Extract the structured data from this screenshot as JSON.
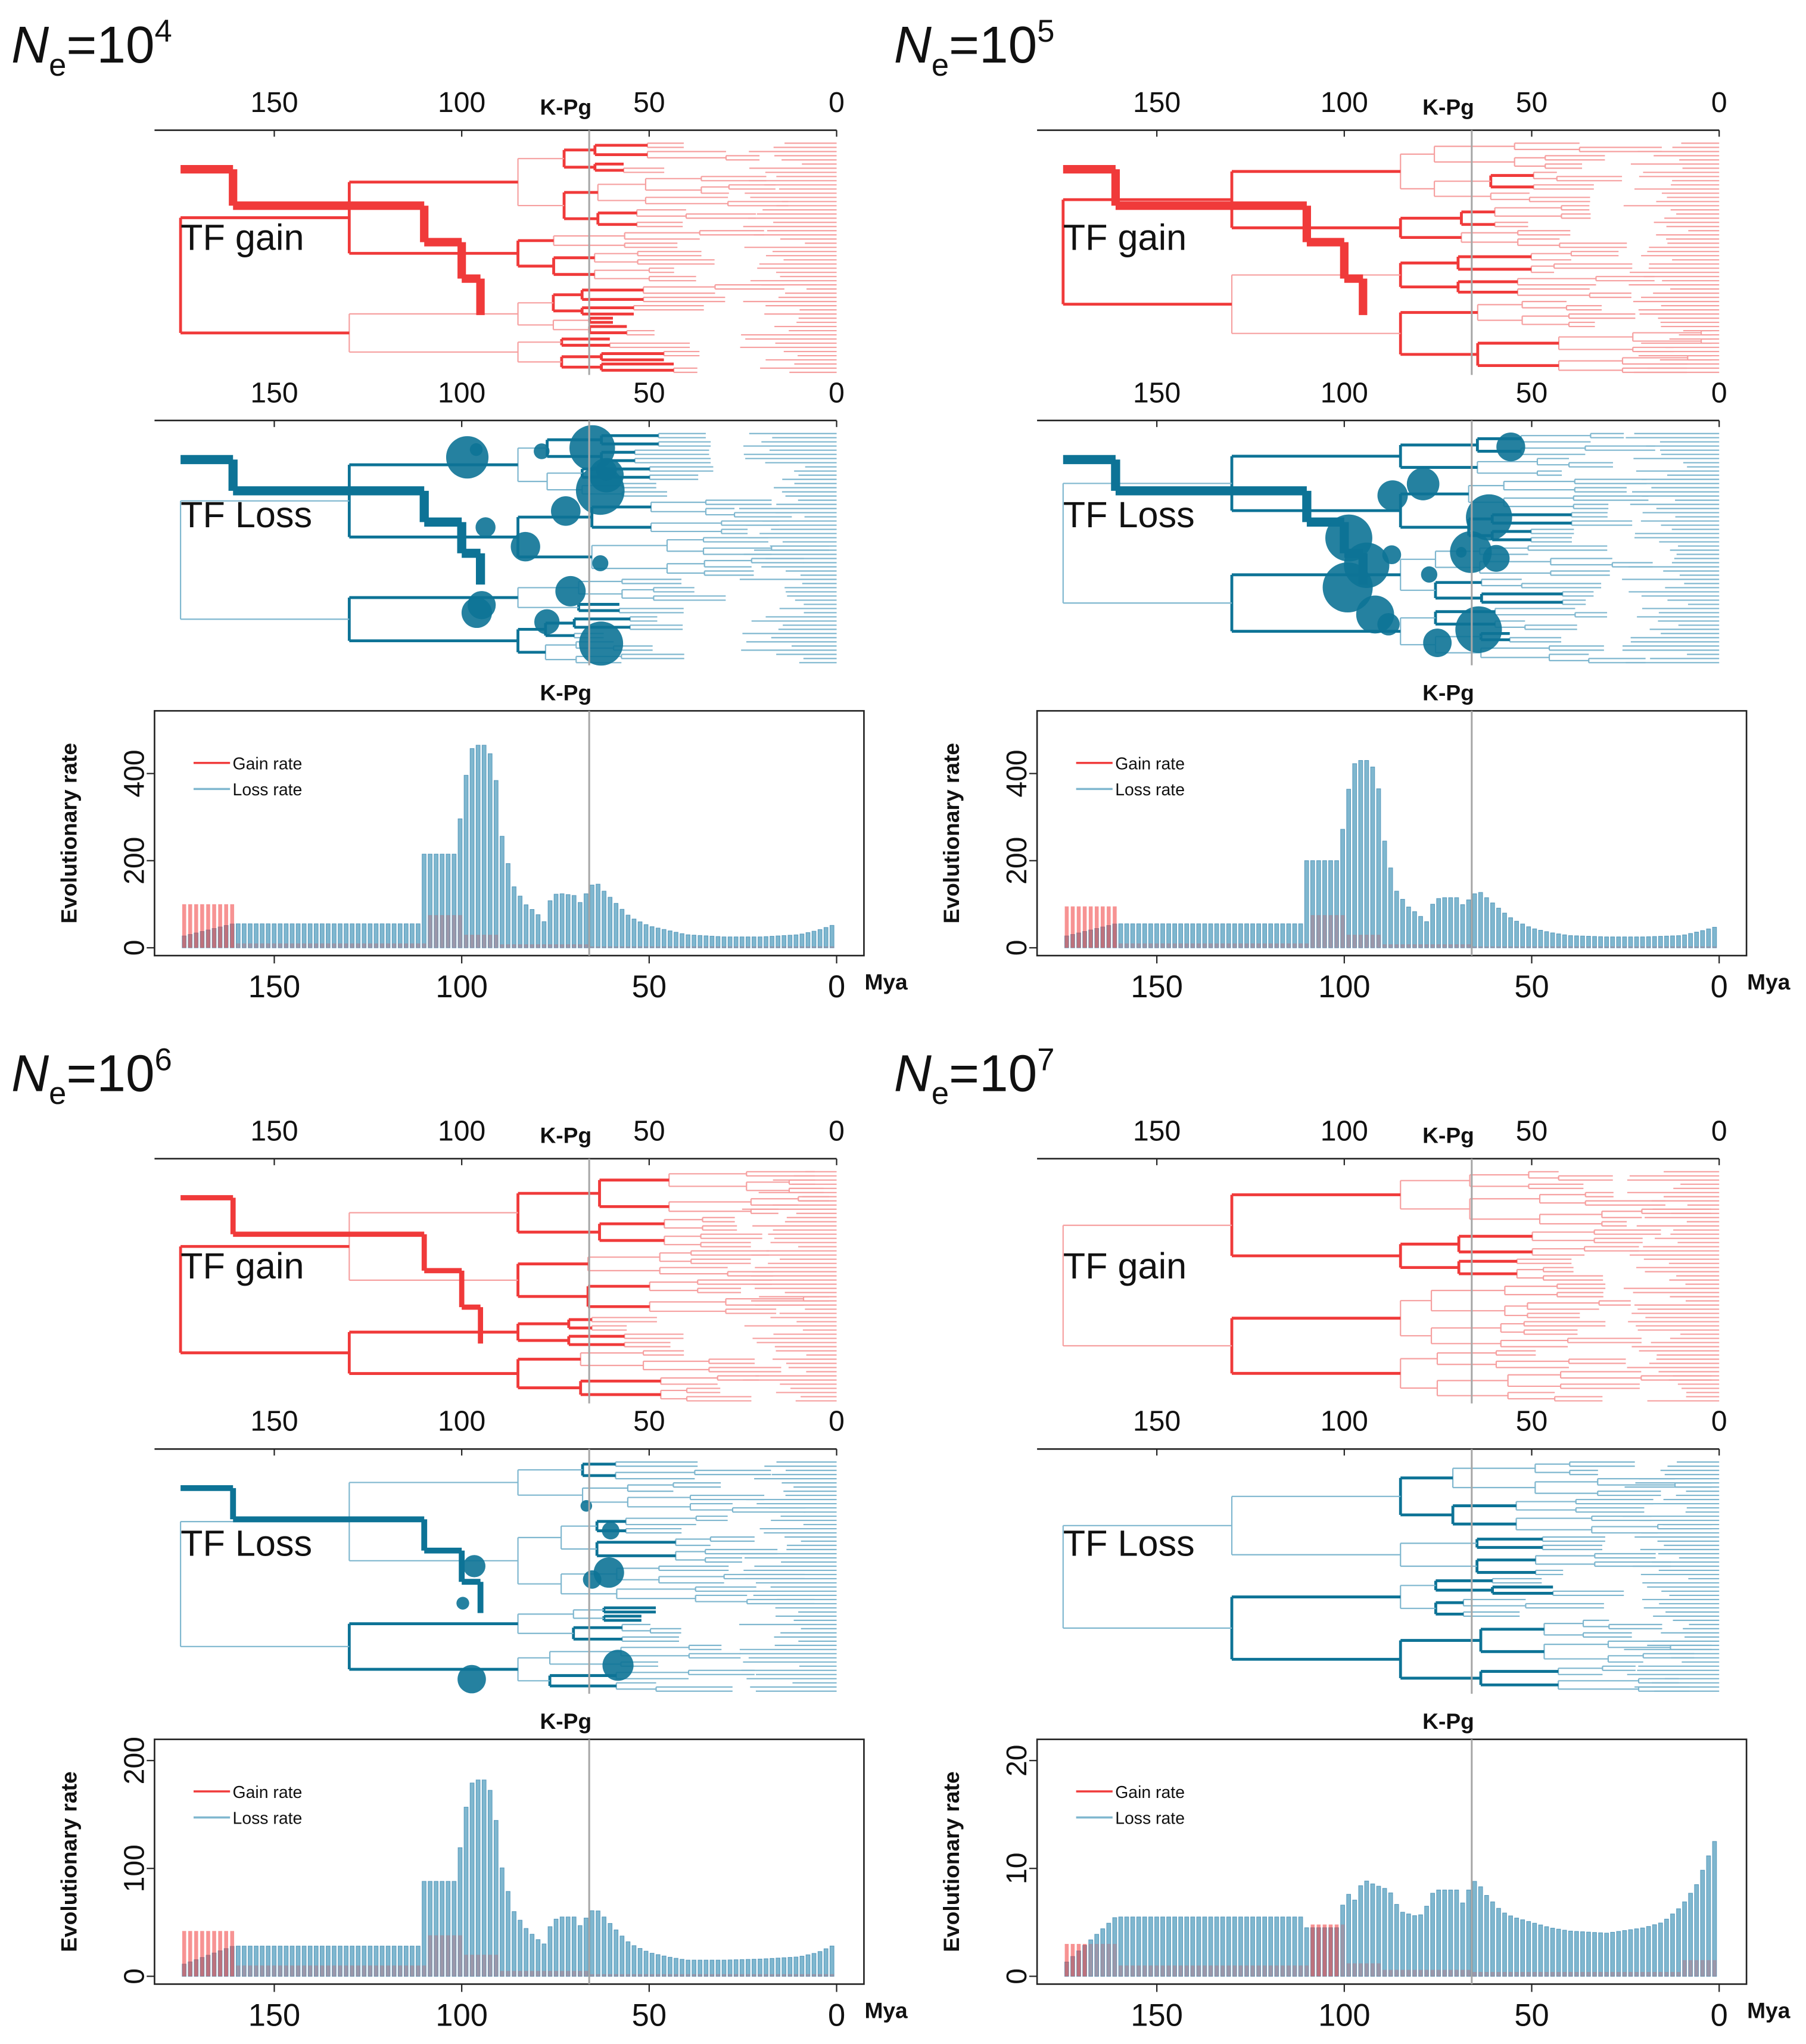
{
  "figure": {
    "colors": {
      "gain": "#f03a3a",
      "gain_light": "#f6a0a0",
      "loss": "#0d7396",
      "loss_light": "#7fb7cf",
      "vline": "#a7a7a7",
      "axis": "#222222"
    },
    "kpg_label": "K-Pg",
    "mya_label": "Mya",
    "ylabel": "Evolutionary rate",
    "legend": [
      "Gain rate",
      "Loss rate"
    ],
    "tree_labels": [
      "TF gain",
      "TF Loss"
    ],
    "tree_ticks": [
      "150",
      "100",
      "50",
      "0"
    ],
    "panels": [
      {
        "title_base": "N",
        "title_sub": "e",
        "title_rest": "=10",
        "title_exp": "4"
      },
      {
        "title_base": "N",
        "title_sub": "e",
        "title_rest": "=10",
        "title_exp": "5"
      },
      {
        "title_base": "N",
        "title_sub": "e",
        "title_rest": "=10",
        "title_exp": "6"
      },
      {
        "title_base": "N",
        "title_sub": "e",
        "title_rest": "=10",
        "title_exp": "7"
      }
    ]
  },
  "chart_data": [
    {
      "type": "bar",
      "title": "Ne=10^4",
      "xlabel": "Mya",
      "ylabel": "Evolutionary rate",
      "x_reversed": true,
      "xlim": [
        175,
        0
      ],
      "xticks": [
        150,
        100,
        50,
        0
      ],
      "ylim": [
        0,
        520
      ],
      "yticks": [
        0,
        200,
        400
      ],
      "kpg_mya": 66,
      "legend_position": "top-left",
      "series": [
        {
          "name": "Gain rate",
          "segments": [
            [
              175,
              161,
              100
            ],
            [
              161,
              110,
              10
            ],
            [
              110,
              100,
              75
            ],
            [
              100,
              90,
              30
            ],
            [
              90,
              66,
              8
            ],
            [
              66,
              0,
              3
            ]
          ]
        },
        {
          "name": "Loss rate",
          "points": [
            [
              175,
              25
            ],
            [
              161,
              55
            ],
            [
              111,
              55
            ],
            [
              110,
              215
            ],
            [
              101,
              215
            ],
            [
              100,
              350
            ],
            [
              97,
              465
            ],
            [
              93,
              465
            ],
            [
              91,
              400
            ],
            [
              89,
              240
            ],
            [
              86,
              140
            ],
            [
              83,
              100
            ],
            [
              80,
              80
            ],
            [
              78,
              60
            ],
            [
              76,
              120
            ],
            [
              74,
              125
            ],
            [
              70,
              120
            ],
            [
              68,
              100
            ],
            [
              66,
              140
            ],
            [
              64,
              150
            ],
            [
              62,
              130
            ],
            [
              58,
              95
            ],
            [
              55,
              70
            ],
            [
              50,
              50
            ],
            [
              45,
              40
            ],
            [
              40,
              30
            ],
            [
              30,
              25
            ],
            [
              20,
              25
            ],
            [
              10,
              30
            ],
            [
              5,
              40
            ],
            [
              0,
              55
            ]
          ]
        }
      ]
    },
    {
      "type": "bar",
      "title": "Ne=10^5",
      "xlabel": "Mya",
      "ylabel": "Evolutionary rate",
      "x_reversed": true,
      "xlim": [
        175,
        0
      ],
      "xticks": [
        150,
        100,
        50,
        0
      ],
      "ylim": [
        0,
        520
      ],
      "yticks": [
        0,
        200,
        400
      ],
      "kpg_mya": 66,
      "legend_position": "top-left",
      "series": [
        {
          "name": "Gain rate",
          "segments": [
            [
              175,
              161,
              95
            ],
            [
              161,
              110,
              10
            ],
            [
              110,
              100,
              75
            ],
            [
              100,
              90,
              30
            ],
            [
              90,
              66,
              8
            ],
            [
              66,
              0,
              3
            ]
          ]
        },
        {
          "name": "Loss rate",
          "points": [
            [
              175,
              25
            ],
            [
              161,
              55
            ],
            [
              111,
              55
            ],
            [
              110,
              200
            ],
            [
              101,
              200
            ],
            [
              100,
              320
            ],
            [
              97,
              430
            ],
            [
              93,
              430
            ],
            [
              91,
              380
            ],
            [
              89,
              230
            ],
            [
              86,
              130
            ],
            [
              83,
              95
            ],
            [
              80,
              75
            ],
            [
              78,
              60
            ],
            [
              76,
              110
            ],
            [
              74,
              115
            ],
            [
              70,
              115
            ],
            [
              68,
              95
            ],
            [
              66,
              120
            ],
            [
              64,
              130
            ],
            [
              62,
              115
            ],
            [
              58,
              85
            ],
            [
              55,
              65
            ],
            [
              50,
              45
            ],
            [
              45,
              35
            ],
            [
              40,
              28
            ],
            [
              30,
              25
            ],
            [
              20,
              25
            ],
            [
              10,
              28
            ],
            [
              5,
              38
            ],
            [
              0,
              50
            ]
          ]
        }
      ]
    },
    {
      "type": "bar",
      "title": "Ne=10^6",
      "xlabel": "Mya",
      "ylabel": "Evolutionary rate",
      "x_reversed": true,
      "xlim": [
        175,
        0
      ],
      "xticks": [
        150,
        100,
        50,
        0
      ],
      "ylim": [
        0,
        210
      ],
      "yticks": [
        0,
        100,
        200
      ],
      "kpg_mya": 66,
      "legend_position": "top-left",
      "series": [
        {
          "name": "Gain rate",
          "segments": [
            [
              175,
              161,
              42
            ],
            [
              161,
              110,
              10
            ],
            [
              110,
              100,
              38
            ],
            [
              100,
              90,
              20
            ],
            [
              90,
              66,
              5
            ],
            [
              66,
              0,
              2
            ]
          ]
        },
        {
          "name": "Loss rate",
          "points": [
            [
              175,
              10
            ],
            [
              161,
              28
            ],
            [
              111,
              28
            ],
            [
              110,
              88
            ],
            [
              101,
              88
            ],
            [
              100,
              140
            ],
            [
              97,
              182
            ],
            [
              93,
              182
            ],
            [
              91,
              150
            ],
            [
              89,
              95
            ],
            [
              86,
              60
            ],
            [
              83,
              45
            ],
            [
              80,
              35
            ],
            [
              78,
              30
            ],
            [
              76,
              50
            ],
            [
              74,
              55
            ],
            [
              70,
              55
            ],
            [
              68,
              45
            ],
            [
              66,
              60
            ],
            [
              64,
              62
            ],
            [
              62,
              55
            ],
            [
              58,
              40
            ],
            [
              55,
              30
            ],
            [
              50,
              22
            ],
            [
              45,
              18
            ],
            [
              40,
              15
            ],
            [
              30,
              15
            ],
            [
              20,
              16
            ],
            [
              10,
              18
            ],
            [
              5,
              22
            ],
            [
              0,
              30
            ]
          ]
        }
      ]
    },
    {
      "type": "bar",
      "title": "Ne=10^7",
      "xlabel": "Mya",
      "ylabel": "Evolutionary rate",
      "x_reversed": true,
      "xlim": [
        175,
        0
      ],
      "xticks": [
        150,
        100,
        50,
        0
      ],
      "ylim": [
        0,
        21
      ],
      "yticks": [
        0,
        10,
        20
      ],
      "kpg_mya": 66,
      "legend_position": "top-left",
      "series": [
        {
          "name": "Gain rate",
          "segments": [
            [
              175,
              161,
              3
            ],
            [
              161,
              110,
              1
            ],
            [
              110,
              100,
              4.8
            ],
            [
              100,
              90,
              1.2
            ],
            [
              90,
              66,
              0.6
            ],
            [
              66,
              10,
              0.4
            ],
            [
              10,
              0,
              1.5
            ]
          ]
        },
        {
          "name": "Loss rate",
          "points": [
            [
              175,
              1
            ],
            [
              161,
              5.5
            ],
            [
              111,
              5.5
            ],
            [
              110,
              4.5
            ],
            [
              101,
              4.5
            ],
            [
              100,
              8
            ],
            [
              97,
              7
            ],
            [
              95,
              9
            ],
            [
              92,
              8.5
            ],
            [
              88,
              8
            ],
            [
              85,
              6
            ],
            [
              80,
              5.5
            ],
            [
              78,
              6.5
            ],
            [
              76,
              8
            ],
            [
              70,
              8
            ],
            [
              68,
              6.5
            ],
            [
              66,
              9
            ],
            [
              64,
              8.5
            ],
            [
              62,
              7.5
            ],
            [
              58,
              6
            ],
            [
              55,
              5.5
            ],
            [
              50,
              5
            ],
            [
              45,
              4.5
            ],
            [
              40,
              4.2
            ],
            [
              30,
              4
            ],
            [
              20,
              4.5
            ],
            [
              15,
              5
            ],
            [
              10,
              6.5
            ],
            [
              6,
              8.5
            ],
            [
              3,
              11
            ],
            [
              0,
              13.5
            ]
          ]
        }
      ]
    }
  ]
}
